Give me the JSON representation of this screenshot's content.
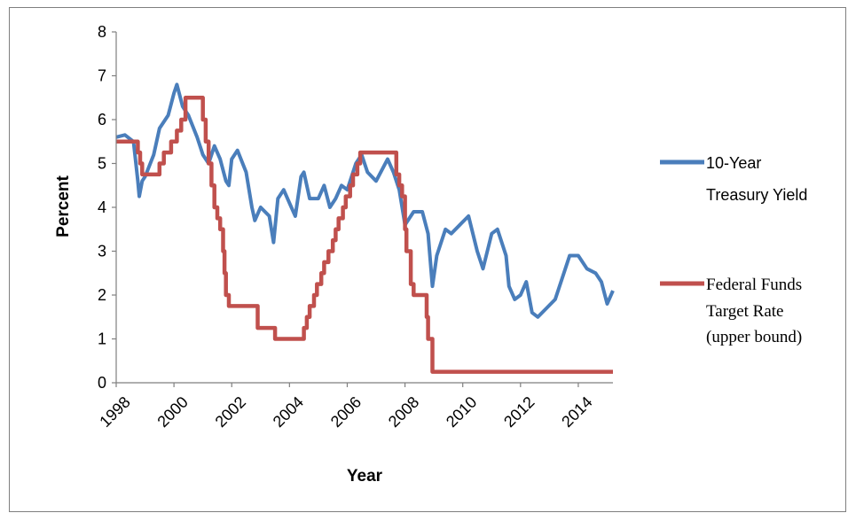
{
  "chart_data": {
    "type": "line",
    "title": "",
    "xlabel": "Year",
    "ylabel": "Percent",
    "xlim": [
      1998,
      2015.2
    ],
    "ylim": [
      0,
      8
    ],
    "x_ticks": [
      "1998",
      "2000",
      "2002",
      "2004",
      "2006",
      "2008",
      "2010",
      "2012",
      "2014"
    ],
    "y_ticks": [
      "0",
      "1",
      "2",
      "3",
      "4",
      "5",
      "6",
      "7",
      "8"
    ],
    "grid": false,
    "legend_position": "right",
    "series": [
      {
        "name": "10-Year Treasury Yield",
        "legend_lines": [
          "10-Year",
          "Treasury Yield"
        ],
        "color": "#4a7ebb",
        "points": [
          [
            1998.0,
            5.6
          ],
          [
            1998.3,
            5.65
          ],
          [
            1998.6,
            5.5
          ],
          [
            1998.75,
            4.6
          ],
          [
            1998.8,
            4.25
          ],
          [
            1998.9,
            4.6
          ],
          [
            1999.0,
            4.7
          ],
          [
            1999.3,
            5.2
          ],
          [
            1999.5,
            5.8
          ],
          [
            1999.8,
            6.1
          ],
          [
            2000.0,
            6.6
          ],
          [
            2000.1,
            6.8
          ],
          [
            2000.3,
            6.3
          ],
          [
            2000.5,
            6.1
          ],
          [
            2000.8,
            5.6
          ],
          [
            2001.0,
            5.2
          ],
          [
            2001.2,
            5.0
          ],
          [
            2001.4,
            5.4
          ],
          [
            2001.6,
            5.1
          ],
          [
            2001.8,
            4.6
          ],
          [
            2001.9,
            4.5
          ],
          [
            2002.0,
            5.1
          ],
          [
            2002.2,
            5.3
          ],
          [
            2002.5,
            4.8
          ],
          [
            2002.7,
            4.0
          ],
          [
            2002.8,
            3.7
          ],
          [
            2003.0,
            4.0
          ],
          [
            2003.3,
            3.8
          ],
          [
            2003.45,
            3.2
          ],
          [
            2003.6,
            4.2
          ],
          [
            2003.8,
            4.4
          ],
          [
            2004.0,
            4.1
          ],
          [
            2004.2,
            3.8
          ],
          [
            2004.4,
            4.7
          ],
          [
            2004.5,
            4.8
          ],
          [
            2004.7,
            4.2
          ],
          [
            2005.0,
            4.2
          ],
          [
            2005.2,
            4.5
          ],
          [
            2005.4,
            4.0
          ],
          [
            2005.6,
            4.2
          ],
          [
            2005.8,
            4.5
          ],
          [
            2006.0,
            4.4
          ],
          [
            2006.3,
            5.0
          ],
          [
            2006.5,
            5.2
          ],
          [
            2006.7,
            4.8
          ],
          [
            2007.0,
            4.6
          ],
          [
            2007.4,
            5.1
          ],
          [
            2007.6,
            4.8
          ],
          [
            2007.8,
            4.4
          ],
          [
            2008.0,
            3.6
          ],
          [
            2008.3,
            3.9
          ],
          [
            2008.6,
            3.9
          ],
          [
            2008.8,
            3.4
          ],
          [
            2008.95,
            2.2
          ],
          [
            2009.1,
            2.9
          ],
          [
            2009.4,
            3.5
          ],
          [
            2009.6,
            3.4
          ],
          [
            2009.9,
            3.6
          ],
          [
            2010.2,
            3.8
          ],
          [
            2010.5,
            3.0
          ],
          [
            2010.7,
            2.6
          ],
          [
            2011.0,
            3.4
          ],
          [
            2011.2,
            3.5
          ],
          [
            2011.5,
            2.9
          ],
          [
            2011.6,
            2.2
          ],
          [
            2011.8,
            1.9
          ],
          [
            2012.0,
            2.0
          ],
          [
            2012.2,
            2.3
          ],
          [
            2012.4,
            1.6
          ],
          [
            2012.6,
            1.5
          ],
          [
            2012.9,
            1.7
          ],
          [
            2013.2,
            1.9
          ],
          [
            2013.5,
            2.5
          ],
          [
            2013.7,
            2.9
          ],
          [
            2014.0,
            2.9
          ],
          [
            2014.3,
            2.6
          ],
          [
            2014.6,
            2.5
          ],
          [
            2014.8,
            2.3
          ],
          [
            2015.0,
            1.8
          ],
          [
            2015.2,
            2.1
          ]
        ]
      },
      {
        "name": "Federal Funds Target Rate (upper bound)",
        "legend_lines": [
          "Federal Funds",
          "Target Rate",
          "(upper bound)"
        ],
        "color": "#c0504d",
        "points": [
          [
            1998.0,
            5.5
          ],
          [
            1998.75,
            5.5
          ],
          [
            1998.75,
            5.25
          ],
          [
            1998.83,
            5.25
          ],
          [
            1998.83,
            5.0
          ],
          [
            1998.9,
            5.0
          ],
          [
            1998.9,
            4.75
          ],
          [
            1999.5,
            4.75
          ],
          [
            1999.5,
            5.0
          ],
          [
            1999.65,
            5.0
          ],
          [
            1999.65,
            5.25
          ],
          [
            1999.9,
            5.25
          ],
          [
            1999.9,
            5.5
          ],
          [
            2000.1,
            5.5
          ],
          [
            2000.1,
            5.75
          ],
          [
            2000.25,
            5.75
          ],
          [
            2000.25,
            6.0
          ],
          [
            2000.4,
            6.0
          ],
          [
            2000.4,
            6.5
          ],
          [
            2001.0,
            6.5
          ],
          [
            2001.0,
            6.0
          ],
          [
            2001.1,
            6.0
          ],
          [
            2001.1,
            5.5
          ],
          [
            2001.2,
            5.5
          ],
          [
            2001.2,
            5.0
          ],
          [
            2001.3,
            5.0
          ],
          [
            2001.3,
            4.5
          ],
          [
            2001.4,
            4.5
          ],
          [
            2001.4,
            4.0
          ],
          [
            2001.5,
            4.0
          ],
          [
            2001.5,
            3.75
          ],
          [
            2001.6,
            3.75
          ],
          [
            2001.6,
            3.5
          ],
          [
            2001.7,
            3.5
          ],
          [
            2001.7,
            3.0
          ],
          [
            2001.75,
            3.0
          ],
          [
            2001.75,
            2.5
          ],
          [
            2001.8,
            2.5
          ],
          [
            2001.8,
            2.0
          ],
          [
            2001.9,
            2.0
          ],
          [
            2001.9,
            1.75
          ],
          [
            2002.9,
            1.75
          ],
          [
            2002.9,
            1.25
          ],
          [
            2003.5,
            1.25
          ],
          [
            2003.5,
            1.0
          ],
          [
            2004.5,
            1.0
          ],
          [
            2004.5,
            1.25
          ],
          [
            2004.6,
            1.25
          ],
          [
            2004.6,
            1.5
          ],
          [
            2004.7,
            1.5
          ],
          [
            2004.7,
            1.75
          ],
          [
            2004.85,
            1.75
          ],
          [
            2004.85,
            2.0
          ],
          [
            2004.95,
            2.0
          ],
          [
            2004.95,
            2.25
          ],
          [
            2005.1,
            2.25
          ],
          [
            2005.1,
            2.5
          ],
          [
            2005.2,
            2.5
          ],
          [
            2005.2,
            2.75
          ],
          [
            2005.35,
            2.75
          ],
          [
            2005.35,
            3.0
          ],
          [
            2005.5,
            3.0
          ],
          [
            2005.5,
            3.25
          ],
          [
            2005.6,
            3.25
          ],
          [
            2005.6,
            3.5
          ],
          [
            2005.7,
            3.5
          ],
          [
            2005.7,
            3.75
          ],
          [
            2005.85,
            3.75
          ],
          [
            2005.85,
            4.0
          ],
          [
            2005.95,
            4.0
          ],
          [
            2005.95,
            4.25
          ],
          [
            2006.1,
            4.25
          ],
          [
            2006.1,
            4.5
          ],
          [
            2006.2,
            4.5
          ],
          [
            2006.2,
            4.75
          ],
          [
            2006.35,
            4.75
          ],
          [
            2006.35,
            5.0
          ],
          [
            2006.45,
            5.0
          ],
          [
            2006.45,
            5.25
          ],
          [
            2007.7,
            5.25
          ],
          [
            2007.7,
            4.75
          ],
          [
            2007.8,
            4.75
          ],
          [
            2007.8,
            4.5
          ],
          [
            2007.9,
            4.5
          ],
          [
            2007.9,
            4.25
          ],
          [
            2008.0,
            4.25
          ],
          [
            2008.0,
            3.5
          ],
          [
            2008.05,
            3.5
          ],
          [
            2008.05,
            3.0
          ],
          [
            2008.2,
            3.0
          ],
          [
            2008.2,
            2.25
          ],
          [
            2008.3,
            2.25
          ],
          [
            2008.3,
            2.0
          ],
          [
            2008.75,
            2.0
          ],
          [
            2008.75,
            1.5
          ],
          [
            2008.8,
            1.5
          ],
          [
            2008.8,
            1.0
          ],
          [
            2008.95,
            1.0
          ],
          [
            2008.95,
            0.25
          ],
          [
            2015.2,
            0.25
          ]
        ]
      }
    ]
  }
}
